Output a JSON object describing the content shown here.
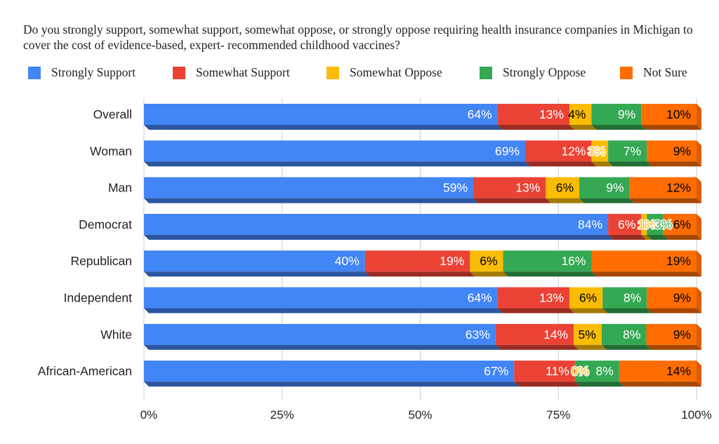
{
  "chart_data": {
    "type": "bar",
    "orientation": "horizontal",
    "stacked": "percent",
    "title": "Do you strongly support, somewhat support, somewhat oppose, or strongly oppose requiring health insurance companies in Michigan to cover the cost of evidence-based, expert- recommended childhood vaccines?",
    "categories": [
      "Overall",
      "Woman",
      "Man",
      "Democrat",
      "Republican",
      "Independent",
      "White",
      "African-American"
    ],
    "series": [
      {
        "name": "Strongly Support",
        "color": "#4285f4",
        "label_color": "#ffffff",
        "values": [
          64,
          69,
          59,
          84,
          40,
          64,
          63,
          67
        ]
      },
      {
        "name": "Somewhat Support",
        "color": "#ea4335",
        "label_color": "#ffffff",
        "values": [
          13,
          12,
          13,
          6,
          19,
          13,
          14,
          11
        ]
      },
      {
        "name": "Somewhat Oppose",
        "color": "#fbbc04",
        "label_color": "#000000",
        "values": [
          4,
          3,
          6,
          1,
          6,
          6,
          5,
          0
        ]
      },
      {
        "name": "Strongly Oppose",
        "color": "#34a853",
        "label_color": "#ffffff",
        "values": [
          9,
          7,
          9,
          3,
          16,
          8,
          8,
          8
        ]
      },
      {
        "name": "Not Sure",
        "color": "#ff6d01",
        "label_color": "#000000",
        "values": [
          10,
          9,
          12,
          6,
          19,
          9,
          9,
          14
        ]
      }
    ],
    "x_ticks": [
      "0%",
      "25%",
      "50%",
      "75%",
      "100%"
    ],
    "xlim": [
      0,
      100
    ],
    "legend_position": "top",
    "grid": true,
    "three_d": true
  }
}
